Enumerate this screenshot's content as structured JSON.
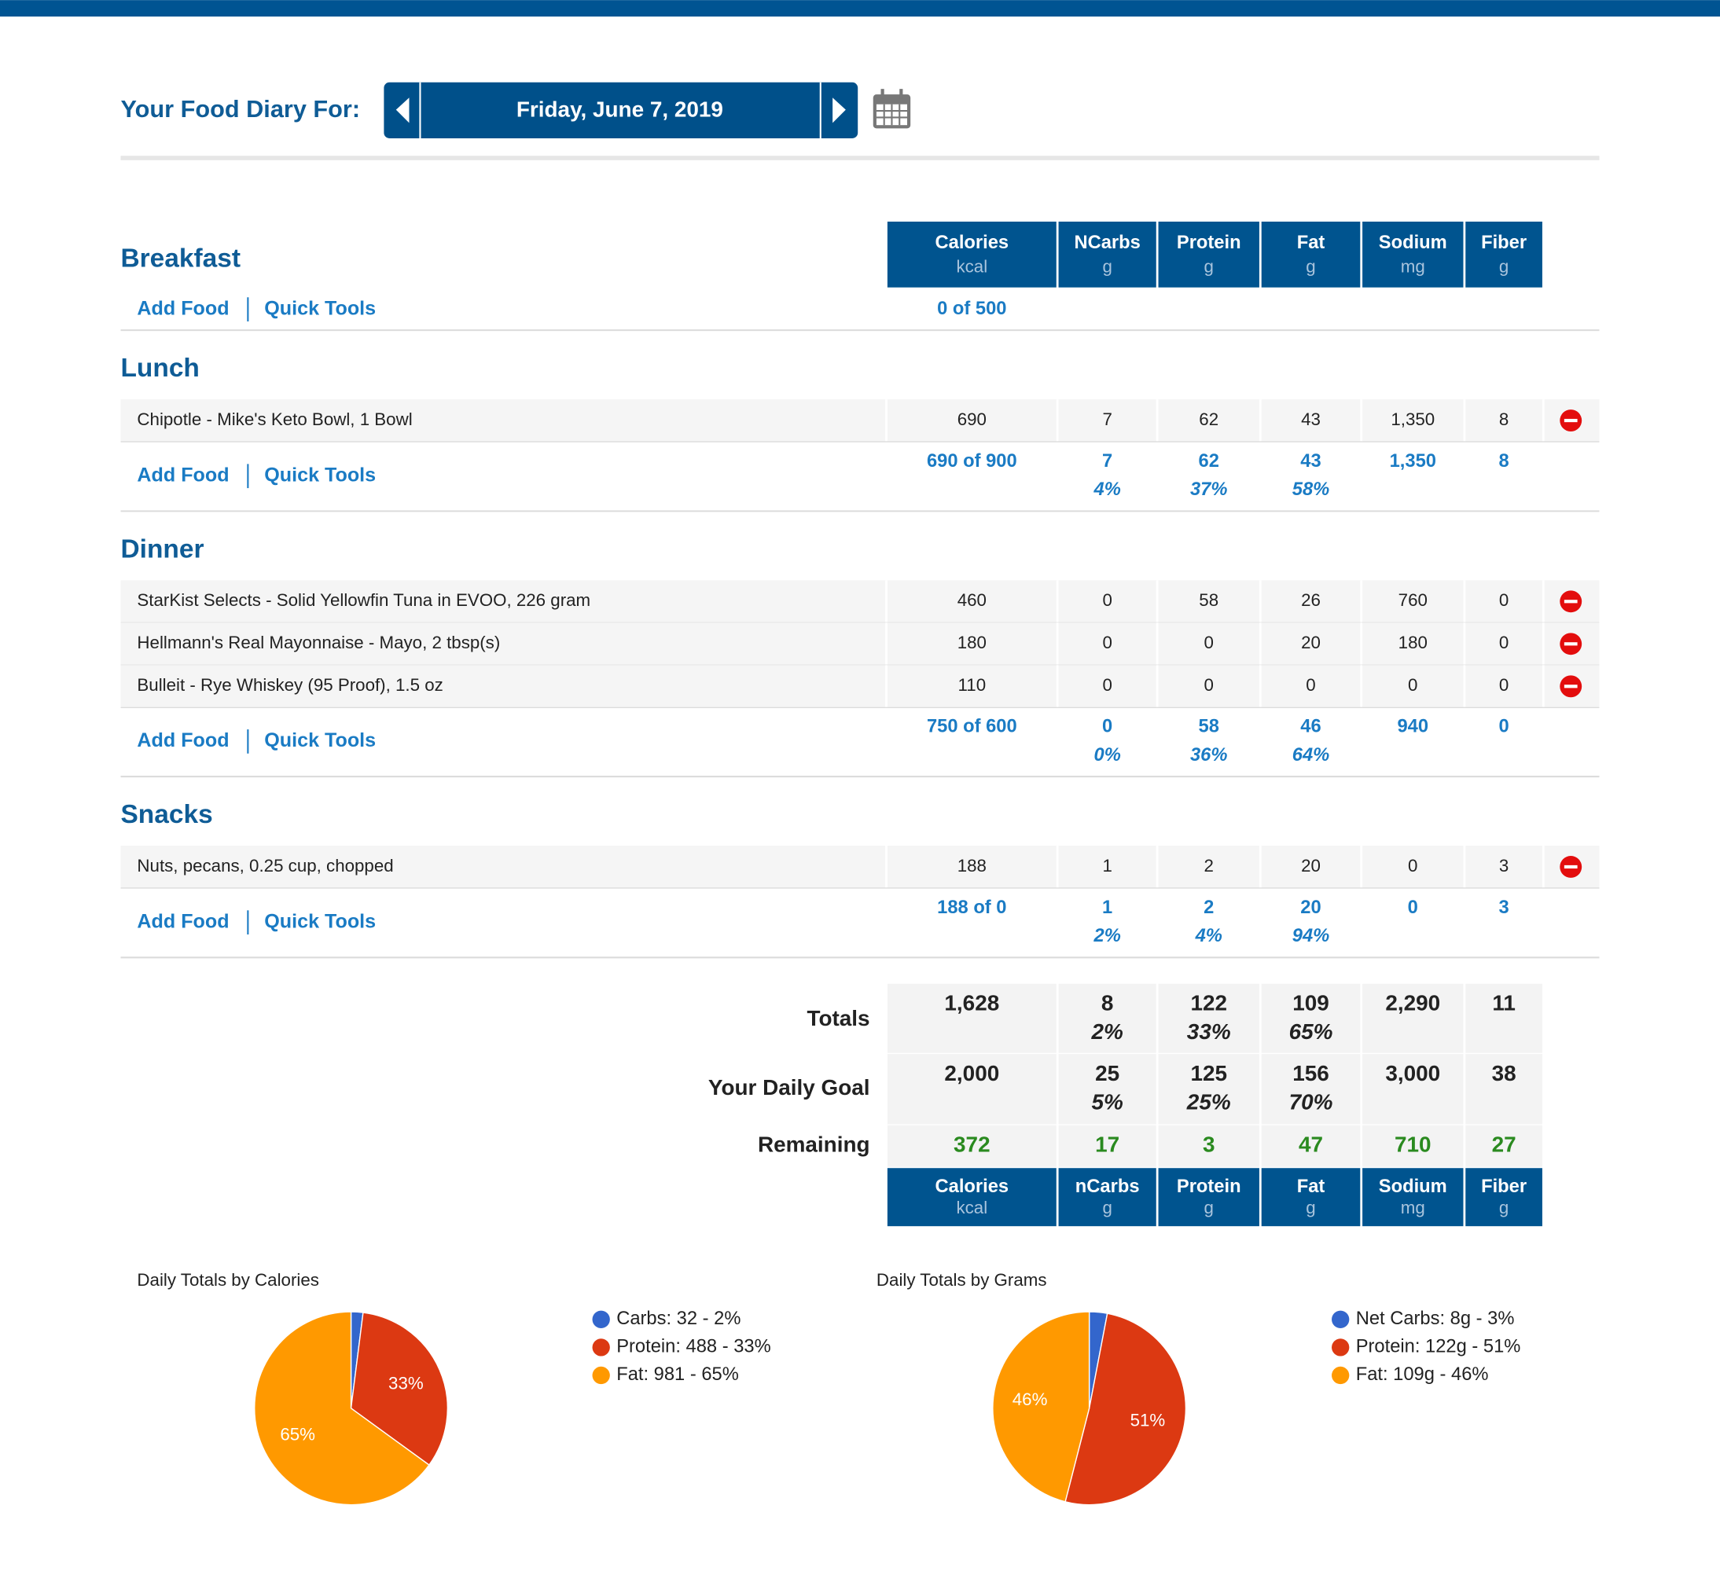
{
  "header": {
    "title": "Your Food Diary For:",
    "date": "Friday, June 7, 2019"
  },
  "columns": [
    {
      "name": "Calories",
      "unit": "kcal"
    },
    {
      "name": "NCarbs",
      "unit": "g"
    },
    {
      "name": "Protein",
      "unit": "g"
    },
    {
      "name": "Fat",
      "unit": "g"
    },
    {
      "name": "Sodium",
      "unit": "mg"
    },
    {
      "name": "Fiber",
      "unit": "g"
    }
  ],
  "footer_columns": [
    {
      "name": "Calories",
      "unit": "kcal"
    },
    {
      "name": "nCarbs",
      "unit": "g"
    },
    {
      "name": "Protein",
      "unit": "g"
    },
    {
      "name": "Fat",
      "unit": "g"
    },
    {
      "name": "Sodium",
      "unit": "mg"
    },
    {
      "name": "Fiber",
      "unit": "g"
    }
  ],
  "add_food": "Add Food",
  "quick_tools": "Quick Tools",
  "meals": [
    {
      "name": "Breakfast",
      "foods": [],
      "summary": {
        "calories": "0 of 500",
        "values": [],
        "percents": []
      }
    },
    {
      "name": "Lunch",
      "foods": [
        {
          "name": "Chipotle - Mike's Keto Bowl, 1 Bowl",
          "values": [
            "690",
            "7",
            "62",
            "43",
            "1,350",
            "8"
          ]
        }
      ],
      "summary": {
        "calories": "690 of 900",
        "values": [
          "7",
          "62",
          "43",
          "1,350",
          "8"
        ],
        "percents": [
          "4%",
          "37%",
          "58%"
        ]
      }
    },
    {
      "name": "Dinner",
      "foods": [
        {
          "name": "StarKist Selects - Solid Yellowfin Tuna in EVOO, 226 gram",
          "values": [
            "460",
            "0",
            "58",
            "26",
            "760",
            "0"
          ]
        },
        {
          "name": "Hellmann's Real Mayonnaise - Mayo, 2 tbsp(s)",
          "values": [
            "180",
            "0",
            "0",
            "20",
            "180",
            "0"
          ]
        },
        {
          "name": "Bulleit - Rye Whiskey (95 Proof), 1.5 oz",
          "values": [
            "110",
            "0",
            "0",
            "0",
            "0",
            "0"
          ]
        }
      ],
      "summary": {
        "calories": "750 of 600",
        "values": [
          "0",
          "58",
          "46",
          "940",
          "0"
        ],
        "percents": [
          "0%",
          "36%",
          "64%"
        ]
      }
    },
    {
      "name": "Snacks",
      "foods": [
        {
          "name": "Nuts, pecans, 0.25 cup, chopped",
          "values": [
            "188",
            "1",
            "2",
            "20",
            "0",
            "3"
          ]
        }
      ],
      "summary": {
        "calories": "188 of 0",
        "values": [
          "1",
          "2",
          "20",
          "0",
          "3"
        ],
        "percents": [
          "2%",
          "4%",
          "94%"
        ]
      }
    }
  ],
  "totals": [
    {
      "label": "Totals",
      "values": [
        "1,628",
        "8",
        "122",
        "109",
        "2,290",
        "11"
      ],
      "percents": [
        "2%",
        "33%",
        "65%"
      ]
    },
    {
      "label": "Your Daily Goal",
      "values": [
        "2,000",
        "25",
        "125",
        "156",
        "3,000",
        "38"
      ],
      "percents": [
        "5%",
        "25%",
        "70%"
      ]
    },
    {
      "label": "Remaining",
      "values": [
        "372",
        "17",
        "3",
        "47",
        "710",
        "27"
      ],
      "percents": []
    }
  ],
  "chart_data": [
    {
      "type": "pie",
      "title": "Daily Totals by Calories",
      "values": [
        2,
        33,
        65
      ],
      "value_labels": [
        null,
        "33%",
        "65%"
      ],
      "colors": [
        "#3366cc",
        "#dc3912",
        "#ff9900"
      ],
      "legend": [
        "Carbs: 32 - 2%",
        "Protein: 488 - 33%",
        "Fat: 981 - 65%"
      ]
    },
    {
      "type": "pie",
      "title": "Daily Totals by Grams",
      "values": [
        3,
        51,
        46
      ],
      "value_labels": [
        null,
        "51%",
        "46%"
      ],
      "colors": [
        "#3366cc",
        "#dc3912",
        "#ff9900"
      ],
      "legend": [
        "Net Carbs: 8g - 3%",
        "Protein: 122g - 51%",
        "Fat: 109g - 46%"
      ]
    }
  ]
}
